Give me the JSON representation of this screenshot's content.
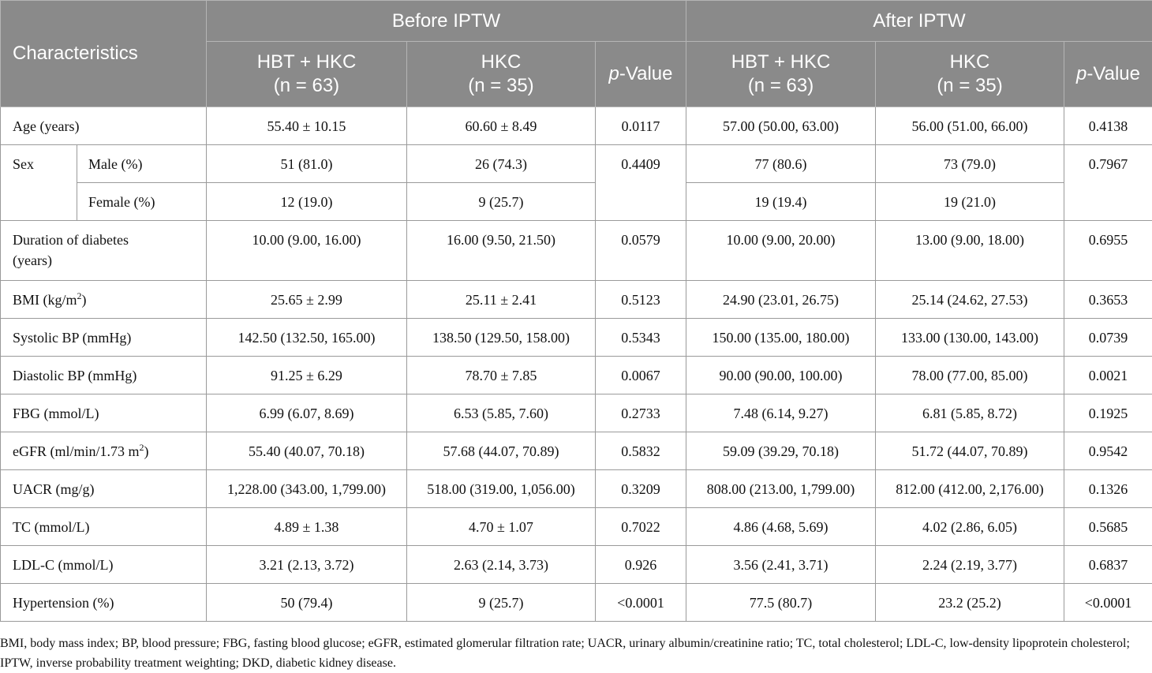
{
  "header": {
    "characteristics": "Characteristics",
    "before": "Before IPTW",
    "after": "After IPTW",
    "groups": {
      "hbt_hkc": "HBT + HKC",
      "hbt_hkc_n": "(n = 63)",
      "hkc": "HKC",
      "hkc_n": "(n = 35)",
      "p_italic": "p",
      "p_rest": "-Value"
    }
  },
  "rows": {
    "age": {
      "label": "Age (years)",
      "b1": "55.40 ± 10.15",
      "b2": "60.60 ± 8.49",
      "bp": "0.0117",
      "a1": "57.00 (50.00, 63.00)",
      "a2": "56.00 (51.00, 66.00)",
      "ap": "0.4138"
    },
    "sex": {
      "label": "Sex",
      "bp": "0.4409",
      "ap": "0.7967",
      "male": {
        "label": "Male (%)",
        "b1": "51 (81.0)",
        "b2": "26 (74.3)",
        "a1": "77 (80.6)",
        "a2": "73 (79.0)"
      },
      "female": {
        "label": "Female (%)",
        "b1": "12 (19.0)",
        "b2": "9 (25.7)",
        "a1": "19 (19.4)",
        "a2": "19 (21.0)"
      }
    },
    "duration": {
      "label_line1": "Duration of diabetes",
      "label_line2": "(years)",
      "b1": "10.00 (9.00, 16.00)",
      "b2": "16.00 (9.50, 21.50)",
      "bp": "0.0579",
      "a1": "10.00 (9.00, 20.00)",
      "a2": "13.00 (9.00, 18.00)",
      "ap": "0.6955"
    },
    "bmi": {
      "label_pre": "BMI (kg/m",
      "label_sup": "2",
      "label_post": ")",
      "b1": "25.65 ± 2.99",
      "b2": "25.11 ± 2.41",
      "bp": "0.5123",
      "a1": "24.90 (23.01, 26.75)",
      "a2": "25.14 (24.62, 27.53)",
      "ap": "0.3653"
    },
    "sbp": {
      "label": "Systolic BP (mmHg)",
      "b1": "142.50 (132.50, 165.00)",
      "b2": "138.50 (129.50, 158.00)",
      "bp": "0.5343",
      "a1": "150.00 (135.00, 180.00)",
      "a2": "133.00 (130.00, 143.00)",
      "ap": "0.0739"
    },
    "dbp": {
      "label": "Diastolic BP (mmHg)",
      "b1": "91.25 ± 6.29",
      "b2": "78.70 ± 7.85",
      "bp": "0.0067",
      "a1": "90.00 (90.00, 100.00)",
      "a2": "78.00 (77.00, 85.00)",
      "ap": "0.0021"
    },
    "fbg": {
      "label": "FBG (mmol/L)",
      "b1": "6.99 (6.07, 8.69)",
      "b2": "6.53 (5.85, 7.60)",
      "bp": "0.2733",
      "a1": "7.48 (6.14, 9.27)",
      "a2": "6.81 (5.85, 8.72)",
      "ap": "0.1925"
    },
    "egfr": {
      "label_pre": "eGFR (ml/min/1.73 m",
      "label_sup": "2",
      "label_post": ")",
      "b1": "55.40 (40.07, 70.18)",
      "b2": "57.68 (44.07, 70.89)",
      "bp": "0.5832",
      "a1": "59.09 (39.29, 70.18)",
      "a2": "51.72 (44.07, 70.89)",
      "ap": "0.9542"
    },
    "uacr": {
      "label": "UACR (mg/g)",
      "b1": "1,228.00 (343.00, 1,799.00)",
      "b2": "518.00 (319.00, 1,056.00)",
      "bp": "0.3209",
      "a1": "808.00 (213.00, 1,799.00)",
      "a2": "812.00 (412.00, 2,176.00)",
      "ap": "0.1326"
    },
    "tc": {
      "label": "TC (mmol/L)",
      "b1": "4.89 ± 1.38",
      "b2": "4.70 ± 1.07",
      "bp": "0.7022",
      "a1": "4.86 (4.68, 5.69)",
      "a2": "4.02 (2.86, 6.05)",
      "ap": "0.5685"
    },
    "ldl": {
      "label": "LDL-C (mmol/L)",
      "b1": "3.21 (2.13, 3.72)",
      "b2": "2.63 (2.14, 3.73)",
      "bp": "0.926",
      "a1": "3.56 (2.41, 3.71)",
      "a2": "2.24 (2.19, 3.77)",
      "ap": "0.6837"
    },
    "htn": {
      "label": "Hypertension (%)",
      "b1": "50 (79.4)",
      "b2": "9 (25.7)",
      "bp": "<0.0001",
      "a1": "77.5 (80.7)",
      "a2": "23.2 (25.2)",
      "ap": "<0.0001"
    }
  },
  "footnote": "BMI, body mass index; BP, blood pressure; FBG, fasting blood glucose; eGFR, estimated glomerular filtration rate; UACR, urinary albumin/creatinine ratio; TC, total cholesterol; LDL-C, low-density lipoprotein cholesterol; IPTW, inverse probability treatment weighting; DKD, diabetic kidney disease."
}
